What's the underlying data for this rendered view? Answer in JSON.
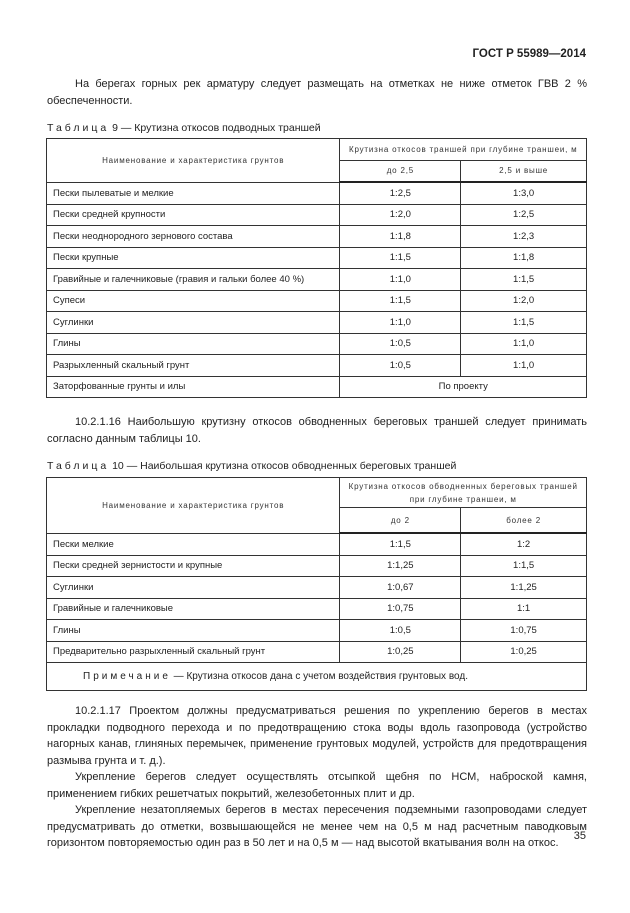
{
  "header": "ГОСТ Р 55989—2014",
  "intro": "На берегах горных рек арматуру следует размещать на отметках не ниже отметок ГВВ 2 % обеспеченности.",
  "table9": {
    "caption_prefix": "Таблица",
    "caption": "9 — Крутизна откосов подводных траншей",
    "col_name": "Наименование и характеристика грунтов",
    "col_group": "Крутизна откосов траншей при глубине траншеи, м",
    "sub": [
      "до 2,5",
      "2,5 и выше"
    ],
    "rows": [
      [
        "Пески пылеватые и мелкие",
        "1:2,5",
        "1:3,0"
      ],
      [
        "Пески средней крупности",
        "1:2,0",
        "1:2,5"
      ],
      [
        "Пески неоднородного зернового состава",
        "1:1,8",
        "1:2,3"
      ],
      [
        "Пески крупные",
        "1:1,5",
        "1:1,8"
      ],
      [
        "Гравийные и галечниковые (гравия и гальки более 40 %)",
        "1:1,0",
        "1:1,5"
      ],
      [
        "Супеси",
        "1:1,5",
        "1:2,0"
      ],
      [
        "Суглинки",
        "1:1,0",
        "1:1,5"
      ],
      [
        "Глины",
        "1:0,5",
        "1:1,0"
      ],
      [
        "Разрыхленный скальный грунт",
        "1:0,5",
        "1:1,0"
      ]
    ],
    "last_row": [
      "Заторфованные грунты и илы",
      "По проекту"
    ]
  },
  "p16": "10.2.1.16 Наибольшую крутизну откосов обводненных береговых траншей следует принимать согласно данным таблицы 10.",
  "table10": {
    "caption_prefix": "Таблица",
    "caption": "10 — Наибольшая крутизна откосов обводненных береговых траншей",
    "col_name": "Наименование и характеристика грунтов",
    "col_group": "Крутизна откосов обводненных береговых траншей при глубине траншеи, м",
    "sub": [
      "до 2",
      "более 2"
    ],
    "rows": [
      [
        "Пески мелкие",
        "1:1,5",
        "1:2"
      ],
      [
        "Пески средней зернистости и крупные",
        "1:1,25",
        "1:1,5"
      ],
      [
        "Суглинки",
        "1:0,67",
        "1:1,25"
      ],
      [
        "Гравийные и галечниковые",
        "1:0,75",
        "1:1"
      ],
      [
        "Глины",
        "1:0,5",
        "1:0,75"
      ],
      [
        "Предварительно разрыхленный скальный грунт",
        "1:0,25",
        "1:0,25"
      ]
    ],
    "note_prefix": "Примечание",
    "note": "— Крутизна откосов дана с учетом воздействия грунтовых вод."
  },
  "p17": [
    "10.2.1.17 Проектом должны предусматриваться решения по укреплению берегов в местах прокладки подводного перехода и по предотвращению стока воды вдоль газопровода (устройство нагорных канав, глиняных перемычек, применение грунтовых модулей, устройств для предотвращения размыва грунта и т. д.).",
    "Укрепление берегов следует осуществлять отсыпкой щебня по НСМ, наброской камня, применением гибких решетчатых покрытий, железобетонных плит и др.",
    "Укрепление незатопляемых берегов в местах пересечения подземными газопроводами следует предусматривать до отметки, возвышающейся не менее чем на 0,5 м над расчетным паводковым горизонтом повторяемостью один раз в 50 лет и на 0,5 м — над высотой вкатывания волн на откос."
  ],
  "page_number": "35"
}
